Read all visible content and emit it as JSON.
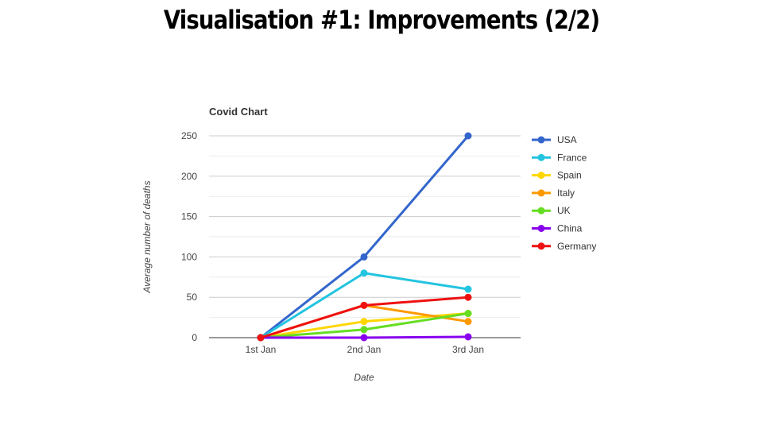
{
  "slide": {
    "title": "Visualisation #1: Improvements (2/2)"
  },
  "chart_data": {
    "type": "line",
    "title": "Covid Chart",
    "xlabel": "Date",
    "ylabel": "Average number of deaths",
    "categories": [
      "1st Jan",
      "2nd Jan",
      "3rd Jan"
    ],
    "yticks": [
      0,
      50,
      100,
      150,
      200,
      250
    ],
    "ylim": [
      0,
      250
    ],
    "grid": true,
    "legend_position": "right",
    "series": [
      {
        "name": "USA",
        "color": "#3366cc",
        "values": [
          0,
          100,
          250
        ]
      },
      {
        "name": "France",
        "color": "#22c4e0",
        "values": [
          0,
          80,
          60
        ]
      },
      {
        "name": "Spain",
        "color": "#ffd600",
        "values": [
          0,
          20,
          30
        ]
      },
      {
        "name": "Italy",
        "color": "#ff9900",
        "values": [
          0,
          40,
          20
        ]
      },
      {
        "name": "UK",
        "color": "#66dd22",
        "values": [
          0,
          10,
          30
        ]
      },
      {
        "name": "China",
        "color": "#8800ee",
        "values": [
          0,
          0,
          1
        ]
      },
      {
        "name": "Germany",
        "color": "#ee1111",
        "values": [
          0,
          40,
          50
        ]
      }
    ]
  }
}
